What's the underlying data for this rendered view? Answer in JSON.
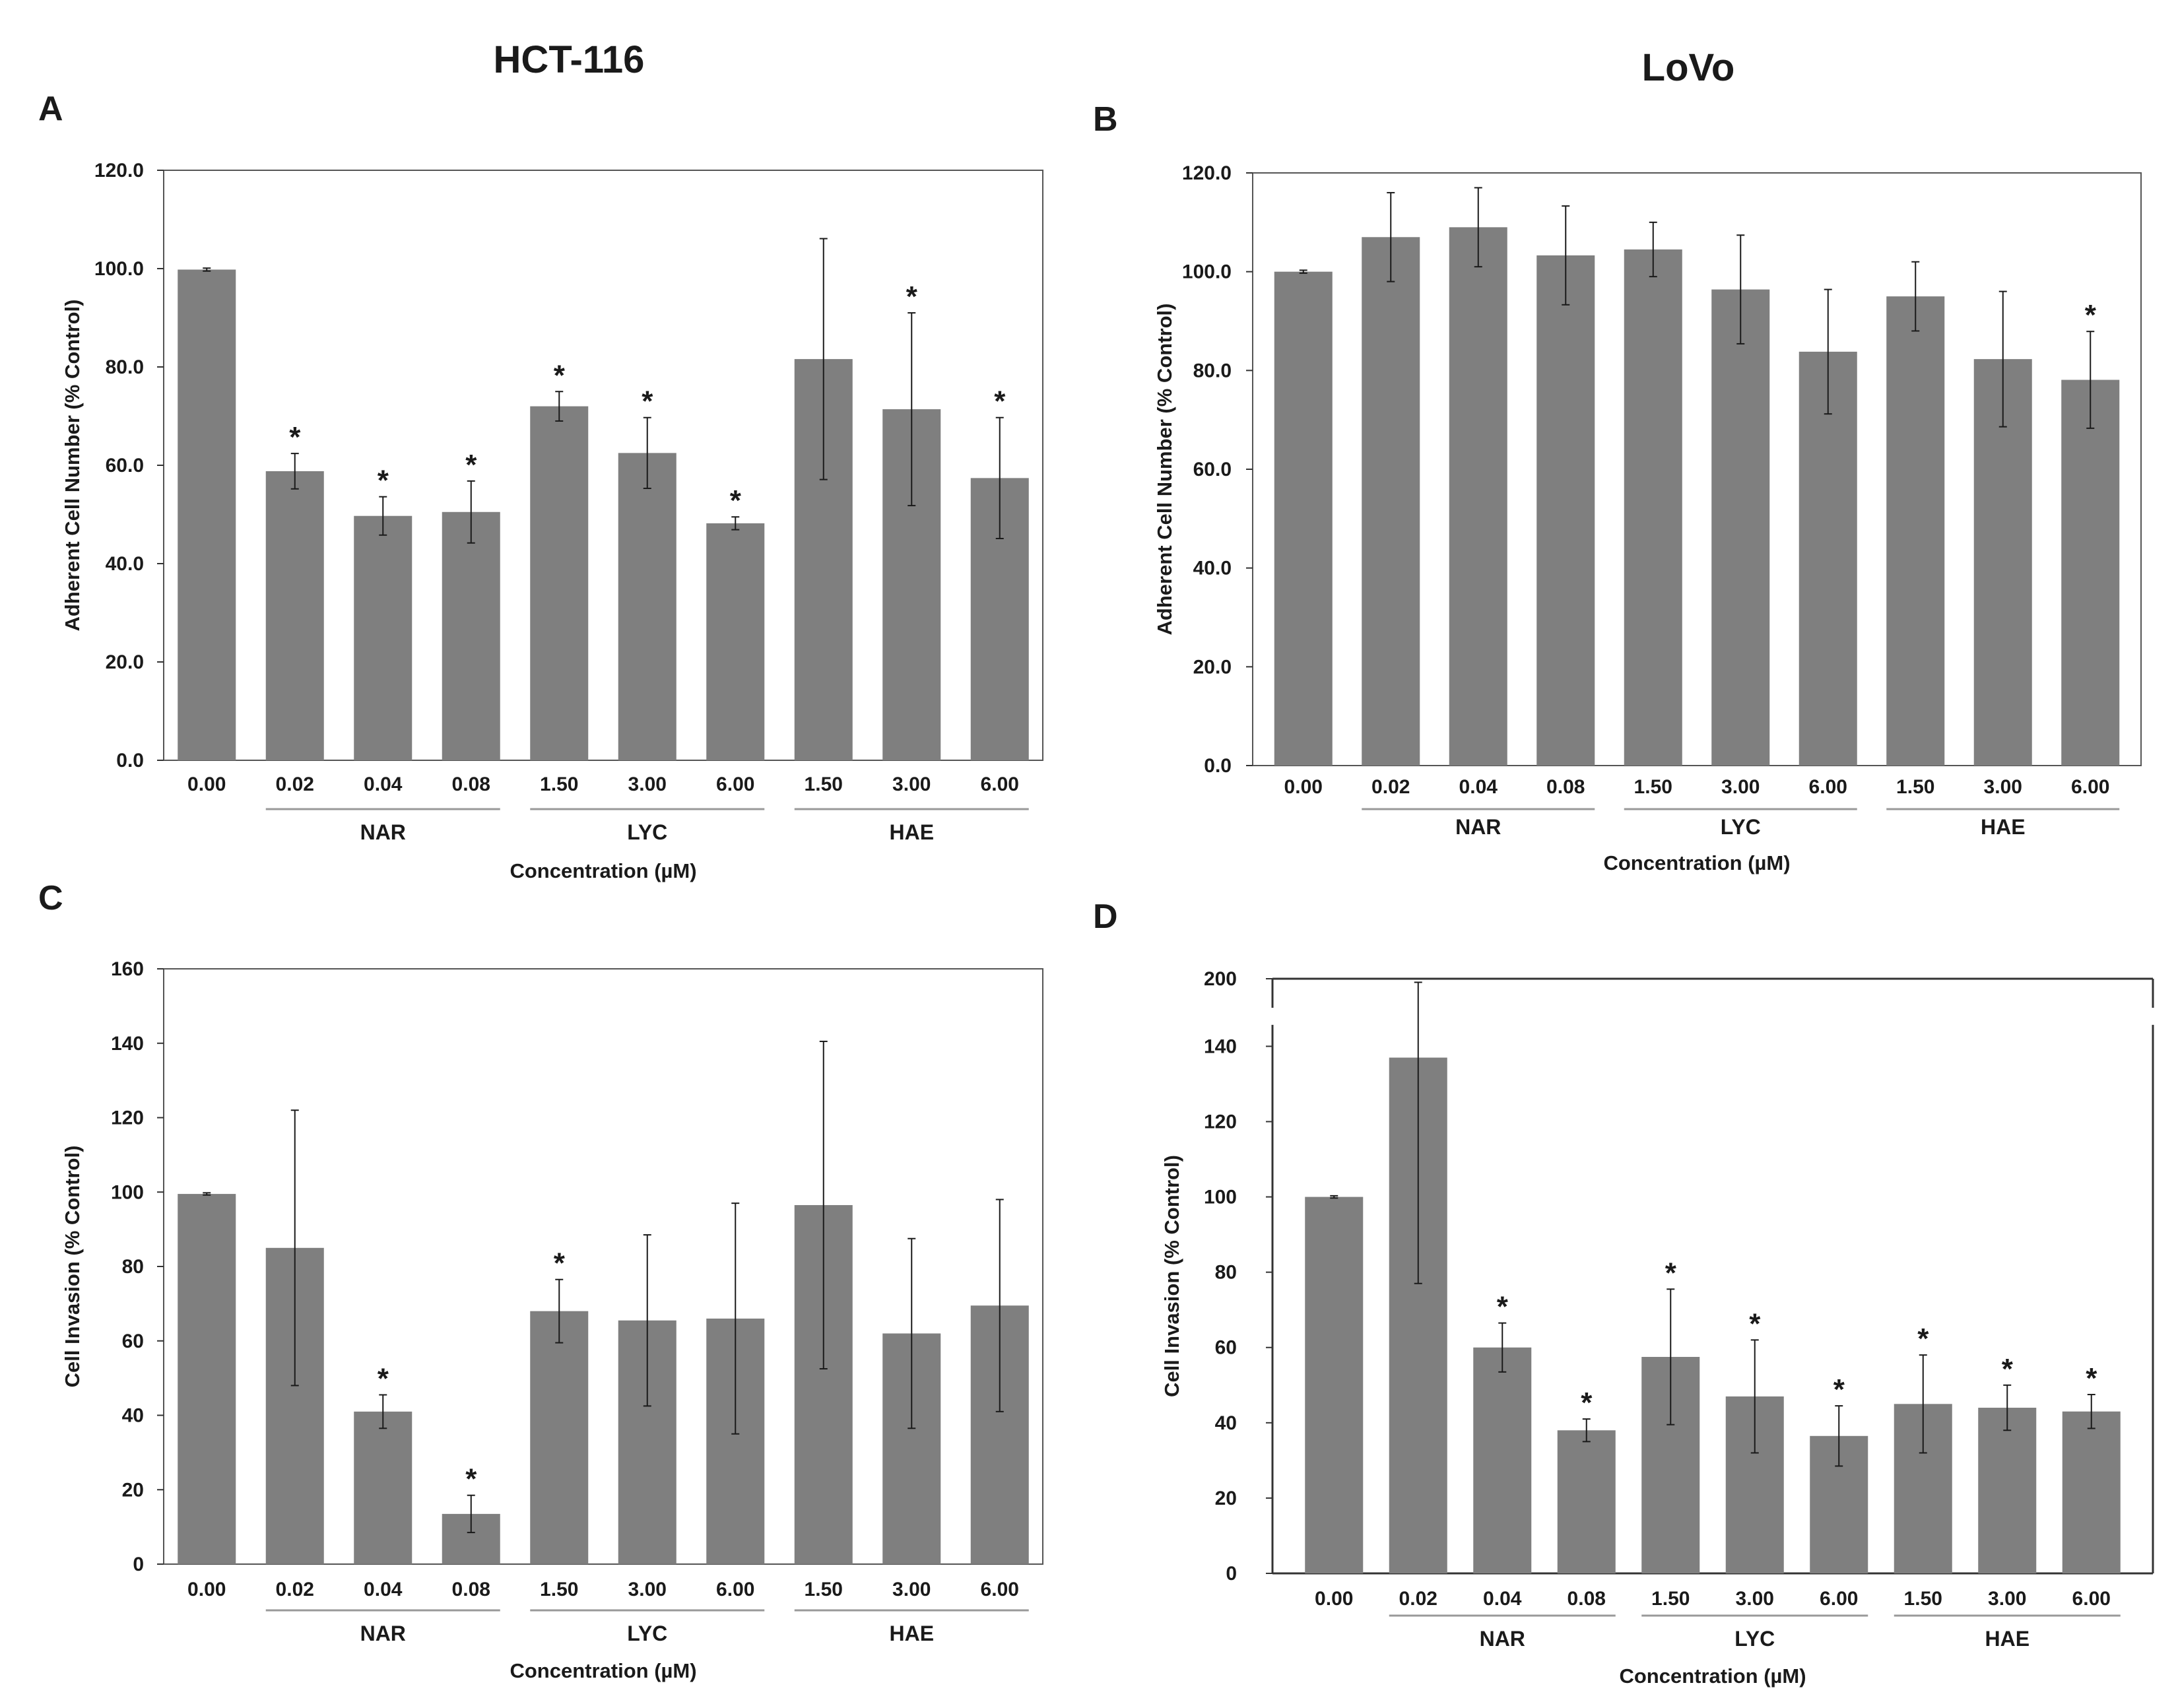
{
  "column_titles": [
    "HCT-116",
    "LoVo"
  ],
  "chart_data": [
    {
      "panel": "A",
      "type": "bar",
      "cell_line": "HCT-116",
      "ylabel": "Adherent Cell Number (% Control)",
      "xlabel": "Concentration (µM)",
      "ylim": [
        0,
        120
      ],
      "yticks": [
        "0.0",
        "20.0",
        "40.0",
        "60.0",
        "80.0",
        "100.0",
        "120.0"
      ],
      "categories": [
        "0.00",
        "0.02",
        "0.04",
        "0.08",
        "1.50",
        "3.00",
        "6.00",
        "1.50",
        "3.00",
        "6.00"
      ],
      "values": [
        99.8,
        58.8,
        49.7,
        50.5,
        72.0,
        62.5,
        48.2,
        81.6,
        71.4,
        57.4
      ],
      "errors": [
        0.3,
        3.6,
        3.9,
        6.3,
        3.0,
        7.2,
        1.3,
        24.5,
        19.6,
        12.3
      ],
      "significant": [
        false,
        true,
        true,
        true,
        true,
        true,
        true,
        false,
        true,
        true
      ],
      "groups": [
        {
          "label": "NAR",
          "start": 1,
          "end": 3
        },
        {
          "label": "LYC",
          "start": 4,
          "end": 6
        },
        {
          "label": "HAE",
          "start": 7,
          "end": 9
        }
      ],
      "star": "*",
      "broken_axis": false
    },
    {
      "panel": "B",
      "type": "bar",
      "cell_line": "LoVo",
      "ylabel": "Adherent Cell Number (% Control)",
      "xlabel": "Concentration (µM)",
      "ylim": [
        0,
        120
      ],
      "yticks": [
        "0.0",
        "20.0",
        "40.0",
        "60.0",
        "80.0",
        "100.0",
        "120.0"
      ],
      "categories": [
        "0.00",
        "0.02",
        "0.04",
        "0.08",
        "1.50",
        "3.00",
        "6.00",
        "1.50",
        "3.00",
        "6.00"
      ],
      "values": [
        100.0,
        107.0,
        109.0,
        103.3,
        104.5,
        96.4,
        83.8,
        95.0,
        82.3,
        78.1
      ],
      "errors": [
        0.3,
        9.0,
        8.0,
        10.0,
        5.5,
        11.0,
        12.6,
        7.0,
        13.7,
        9.8
      ],
      "significant": [
        false,
        false,
        false,
        false,
        false,
        false,
        false,
        false,
        false,
        true
      ],
      "groups": [
        {
          "label": "NAR",
          "start": 1,
          "end": 3
        },
        {
          "label": "LYC",
          "start": 4,
          "end": 6
        },
        {
          "label": "HAE",
          "start": 7,
          "end": 9
        }
      ],
      "star": "*",
      "broken_axis": false
    },
    {
      "panel": "C",
      "type": "bar",
      "cell_line": "HCT-116",
      "ylabel": "Cell Invasion (% Control)",
      "xlabel": "Concentration (µM)",
      "ylim": [
        0,
        160
      ],
      "yticks": [
        "0",
        "20",
        "40",
        "60",
        "80",
        "100",
        "120",
        "140",
        "160"
      ],
      "categories": [
        "0.00",
        "0.02",
        "0.04",
        "0.08",
        "1.50",
        "3.00",
        "6.00",
        "1.50",
        "3.00",
        "6.00"
      ],
      "values": [
        99.5,
        85.0,
        41.0,
        13.5,
        68.0,
        65.5,
        66.0,
        96.5,
        62.0,
        69.5
      ],
      "errors": [
        0.3,
        37.0,
        4.5,
        5.0,
        8.5,
        23.0,
        31.0,
        44.0,
        25.5,
        28.5
      ],
      "significant": [
        false,
        false,
        true,
        true,
        true,
        false,
        false,
        false,
        false,
        false
      ],
      "groups": [
        {
          "label": "NAR",
          "start": 1,
          "end": 3
        },
        {
          "label": "LYC",
          "start": 4,
          "end": 6
        },
        {
          "label": "HAE",
          "start": 7,
          "end": 9
        }
      ],
      "star": "*",
      "broken_axis": false
    },
    {
      "panel": "D",
      "type": "bar",
      "cell_line": "LoVo",
      "ylabel": "Cell Invasion (% Control)",
      "xlabel": "Concentration (µM)",
      "ylim": [
        0,
        200
      ],
      "axis_break": [
        145,
        195
      ],
      "yticks": [
        "0",
        "20",
        "40",
        "60",
        "80",
        "100",
        "120",
        "140",
        "200"
      ],
      "categories": [
        "0.00",
        "0.02",
        "0.04",
        "0.08",
        "1.50",
        "3.00",
        "6.00",
        "1.50",
        "3.00",
        "6.00"
      ],
      "values": [
        100.0,
        137.0,
        60.0,
        38.0,
        57.5,
        47.0,
        36.5,
        45.0,
        44.0,
        43.0
      ],
      "errors": [
        0.3,
        60.0,
        6.5,
        3.0,
        18.0,
        15.0,
        8.0,
        13.0,
        6.0,
        4.5
      ],
      "significant": [
        false,
        false,
        true,
        true,
        true,
        true,
        true,
        true,
        true,
        true
      ],
      "groups": [
        {
          "label": "NAR",
          "start": 1,
          "end": 3
        },
        {
          "label": "LYC",
          "start": 4,
          "end": 6
        },
        {
          "label": "HAE",
          "start": 7,
          "end": 9
        }
      ],
      "star": "*",
      "broken_axis": true
    }
  ],
  "colors": {
    "bar": "#7f7f7f",
    "error_bar": "#1a1a1a",
    "axis": "#333333",
    "frame": "#555555",
    "group_line": "#999999",
    "text": "#1a1a1a"
  }
}
